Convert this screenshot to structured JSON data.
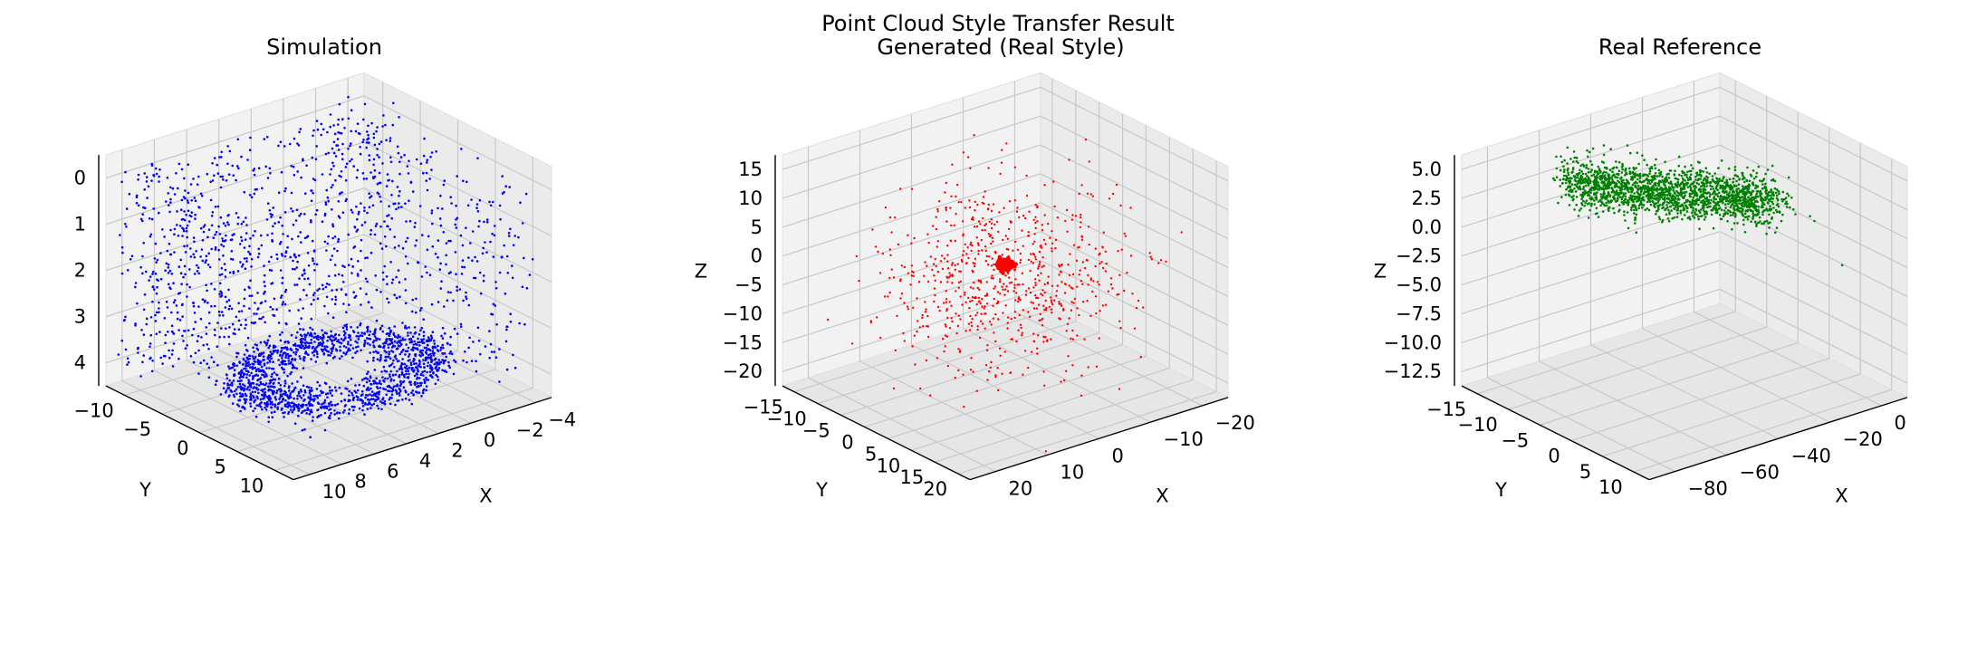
{
  "figure": {
    "title": "Point Cloud Style Transfer Result"
  },
  "chart_data": [
    {
      "type": "scatter3d",
      "title": "Simulation",
      "color": "#0000ff",
      "xlabel": "X",
      "ylabel": "Y",
      "zlabel": "",
      "xlim": [
        -4,
        10
      ],
      "ylim": [
        -13,
        11
      ],
      "zlim": [
        -0.6,
        4.7
      ],
      "xticks": [
        10,
        8,
        6,
        4,
        2,
        0,
        -2,
        -4
      ],
      "yticks": [
        -10,
        -5,
        0,
        5,
        10
      ],
      "zticks": [
        0,
        1,
        2,
        3,
        4
      ],
      "distribution": "indoor room: dense elliptical floor ring near z=0 with vertical wall points up to z=4.5"
    },
    {
      "type": "scatter3d",
      "title": "Generated (Real Style)",
      "color": "#ff0000",
      "xlabel": "X",
      "ylabel": "Y",
      "zlabel": "Z",
      "xlim": [
        -23,
        23
      ],
      "ylim": [
        -18,
        22
      ],
      "zlim": [
        -22,
        18
      ],
      "xticks": [
        20,
        10,
        0,
        -10,
        -20
      ],
      "yticks": [
        -15,
        -10,
        -5,
        0,
        5,
        10,
        15,
        20
      ],
      "zticks": [
        15,
        10,
        5,
        0,
        -5,
        -10,
        -15,
        -20
      ],
      "distribution": "diffuse cloud around the origin with a dense cluster at about (0, 0, 0)"
    },
    {
      "type": "scatter3d",
      "title": "Real Reference",
      "color": "#008000",
      "xlabel": "X",
      "ylabel": "Y",
      "zlabel": "Z",
      "xlim": [
        -90,
        10
      ],
      "ylim": [
        -16,
        14
      ],
      "zlim": [
        -13.5,
        5.5
      ],
      "xticks": [
        -80,
        -60,
        -40,
        -20,
        0
      ],
      "yticks": [
        -15,
        -10,
        -5,
        0,
        5,
        10
      ],
      "zticks": [
        5.0,
        2.5,
        0.0,
        -2.5,
        -5.0,
        -7.5,
        -10.0,
        -12.5
      ],
      "distribution": "elongated dense band along X near z from 4 to -4"
    }
  ]
}
